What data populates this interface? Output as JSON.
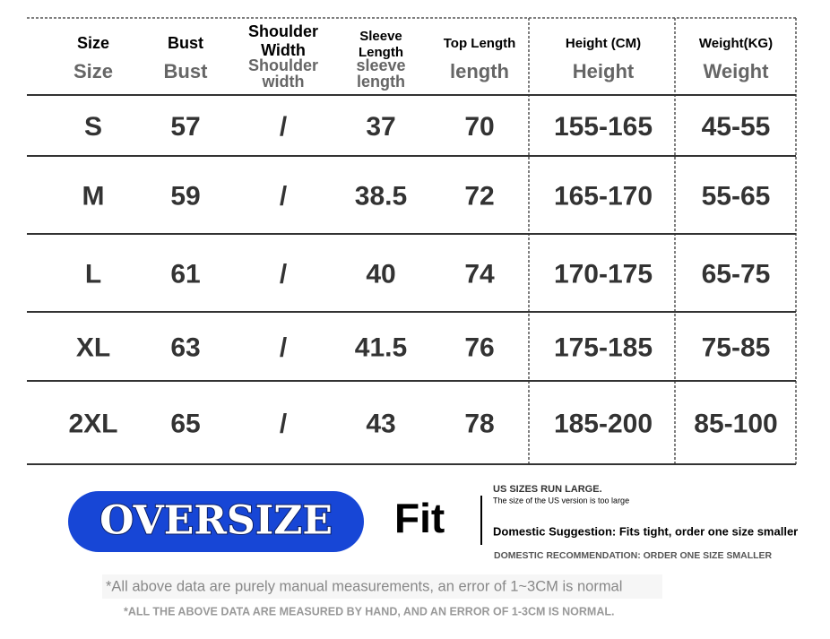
{
  "table": {
    "headers": [
      {
        "label": "Size",
        "sub": "Size"
      },
      {
        "label": "Bust",
        "sub": "Bust"
      },
      {
        "label": "Shoulder Width",
        "sub": "Shoulder width"
      },
      {
        "label": "Sleeve Length",
        "sub": "sleeve length"
      },
      {
        "label": "Top Length",
        "sub": "length"
      },
      {
        "label": "Height (CM)",
        "sub": "Height"
      },
      {
        "label": "Weight(KG)",
        "sub": "Weight"
      }
    ],
    "rows": [
      [
        "S",
        "57",
        "/",
        "37",
        "70",
        "155-165",
        "45-55"
      ],
      [
        "M",
        "59",
        "/",
        "38.5",
        "72",
        "165-170",
        "55-65"
      ],
      [
        "L",
        "61",
        "/",
        "40",
        "74",
        "170-175",
        "65-75"
      ],
      [
        "XL",
        "63",
        "/",
        "41.5",
        "76",
        "175-185",
        "75-85"
      ],
      [
        "2XL",
        "65",
        "/",
        "43",
        "78",
        "185-200",
        "85-100"
      ]
    ]
  },
  "fit": {
    "badge": "OVERSIZE",
    "label": "Fit",
    "notes": [
      "US SIZES RUN LARGE.",
      "The size of the US version is too large",
      "Domestic Suggestion: Fits tight, order one size smaller",
      "DOMESTIC RECOMMENDATION: ORDER ONE SIZE SMALLER"
    ]
  },
  "footnotes": [
    "*All above data are purely manual measurements, an error of 1~3CM is normal",
    "*ALL THE ABOVE DATA ARE MEASURED BY HAND, AND AN ERROR OF 1-3CM IS NORMAL."
  ]
}
